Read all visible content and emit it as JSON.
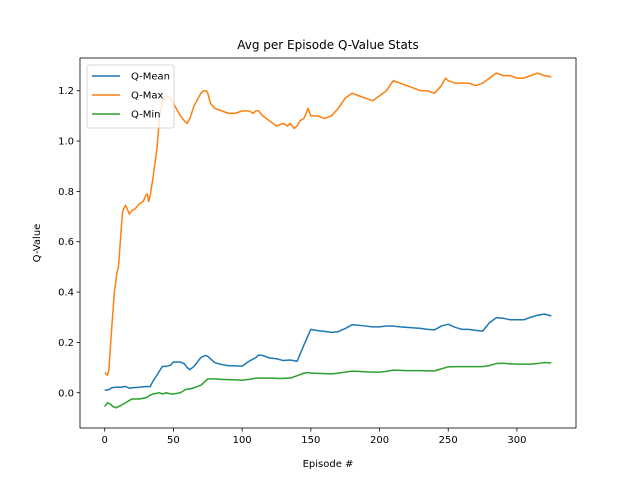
{
  "chart_data": {
    "type": "line",
    "title": "Avg per Episode Q-Value Stats",
    "xlabel": "Episode #",
    "ylabel": "Q-Value",
    "xlim": [
      -18,
      343
    ],
    "ylim": [
      -0.14,
      1.33
    ],
    "xticks": [
      0,
      50,
      100,
      150,
      200,
      250,
      300
    ],
    "yticks": [
      0.0,
      0.2,
      0.4,
      0.6,
      0.8,
      1.0,
      1.2
    ],
    "ytick_labels": [
      "0.0",
      "0.2",
      "0.4",
      "0.6",
      "0.8",
      "1.0",
      "1.2"
    ],
    "grid": false,
    "legend_position": "top-left",
    "series": [
      {
        "name": "Q-Mean",
        "color": "#1f77b4",
        "x": [
          0,
          3,
          5,
          8,
          12,
          15,
          18,
          20,
          25,
          30,
          33,
          35,
          38,
          42,
          45,
          48,
          50,
          55,
          58,
          60,
          62,
          65,
          70,
          73,
          75,
          78,
          80,
          85,
          90,
          100,
          105,
          110,
          112,
          115,
          120,
          125,
          130,
          135,
          140,
          145,
          150,
          155,
          160,
          165,
          170,
          175,
          180,
          185,
          190,
          195,
          200,
          205,
          210,
          215,
          220,
          225,
          230,
          235,
          240,
          245,
          250,
          255,
          260,
          265,
          270,
          275,
          280,
          285,
          290,
          295,
          300,
          305,
          310,
          315,
          320,
          325
        ],
        "y": [
          0.01,
          0.012,
          0.02,
          0.022,
          0.022,
          0.025,
          0.018,
          0.02,
          0.022,
          0.025,
          0.024,
          0.045,
          0.07,
          0.105,
          0.105,
          0.11,
          0.122,
          0.122,
          0.115,
          0.1,
          0.092,
          0.105,
          0.14,
          0.148,
          0.145,
          0.13,
          0.12,
          0.112,
          0.108,
          0.106,
          0.125,
          0.14,
          0.15,
          0.148,
          0.138,
          0.135,
          0.128,
          0.13,
          0.125,
          0.19,
          0.252,
          0.247,
          0.244,
          0.24,
          0.243,
          0.255,
          0.27,
          0.268,
          0.265,
          0.262,
          0.262,
          0.265,
          0.265,
          0.262,
          0.26,
          0.258,
          0.256,
          0.252,
          0.25,
          0.265,
          0.272,
          0.26,
          0.252,
          0.252,
          0.248,
          0.245,
          0.278,
          0.298,
          0.296,
          0.29,
          0.29,
          0.29,
          0.3,
          0.308,
          0.313,
          0.305
        ]
      },
      {
        "name": "Q-Max",
        "color": "#ff7f0e",
        "x": [
          0,
          2,
          3,
          5,
          7,
          9,
          10,
          12,
          13,
          15,
          16,
          18,
          20,
          22,
          25,
          28,
          30,
          31,
          32,
          33,
          35,
          38,
          40,
          42,
          45,
          48,
          50,
          52,
          55,
          58,
          60,
          62,
          65,
          68,
          70,
          72,
          74,
          75,
          77,
          80,
          85,
          90,
          95,
          100,
          105,
          108,
          110,
          112,
          115,
          120,
          125,
          130,
          133,
          135,
          138,
          140,
          142,
          145,
          148,
          150,
          155,
          160,
          165,
          170,
          175,
          180,
          185,
          190,
          195,
          200,
          205,
          210,
          215,
          220,
          225,
          230,
          235,
          240,
          245,
          248,
          250,
          255,
          260,
          265,
          270,
          275,
          280,
          285,
          290,
          295,
          300,
          305,
          310,
          315,
          320,
          325
        ],
        "y": [
          0.08,
          0.07,
          0.09,
          0.25,
          0.4,
          0.48,
          0.5,
          0.65,
          0.72,
          0.745,
          0.735,
          0.71,
          0.725,
          0.73,
          0.75,
          0.76,
          0.785,
          0.79,
          0.76,
          0.78,
          0.85,
          0.97,
          1.1,
          1.16,
          1.18,
          1.17,
          1.15,
          1.13,
          1.1,
          1.08,
          1.07,
          1.09,
          1.14,
          1.17,
          1.19,
          1.2,
          1.2,
          1.19,
          1.15,
          1.13,
          1.12,
          1.11,
          1.11,
          1.12,
          1.12,
          1.11,
          1.12,
          1.12,
          1.1,
          1.08,
          1.06,
          1.07,
          1.06,
          1.07,
          1.05,
          1.06,
          1.08,
          1.09,
          1.13,
          1.1,
          1.1,
          1.09,
          1.1,
          1.13,
          1.17,
          1.19,
          1.18,
          1.17,
          1.16,
          1.18,
          1.2,
          1.24,
          1.23,
          1.22,
          1.21,
          1.2,
          1.2,
          1.19,
          1.22,
          1.25,
          1.24,
          1.23,
          1.23,
          1.23,
          1.22,
          1.23,
          1.25,
          1.27,
          1.26,
          1.26,
          1.25,
          1.25,
          1.26,
          1.27,
          1.26,
          1.255
        ]
      },
      {
        "name": "Q-Min",
        "color": "#2ca02c",
        "x": [
          0,
          2,
          4,
          6,
          8,
          10,
          12,
          15,
          18,
          20,
          25,
          30,
          33,
          35,
          40,
          42,
          45,
          48,
          50,
          55,
          58,
          60,
          62,
          65,
          70,
          75,
          80,
          85,
          90,
          100,
          105,
          110,
          115,
          120,
          125,
          130,
          135,
          140,
          145,
          148,
          150,
          155,
          160,
          165,
          170,
          175,
          180,
          185,
          190,
          195,
          200,
          205,
          210,
          215,
          220,
          225,
          230,
          235,
          240,
          245,
          250,
          255,
          260,
          265,
          270,
          275,
          280,
          285,
          290,
          295,
          300,
          305,
          310,
          315,
          320,
          325
        ],
        "y": [
          -0.055,
          -0.04,
          -0.045,
          -0.055,
          -0.06,
          -0.055,
          -0.05,
          -0.04,
          -0.03,
          -0.025,
          -0.025,
          -0.02,
          -0.01,
          -0.005,
          0.0,
          -0.005,
          0.0,
          -0.005,
          -0.005,
          0.0,
          0.01,
          0.015,
          0.015,
          0.02,
          0.03,
          0.055,
          0.055,
          0.053,
          0.052,
          0.05,
          0.053,
          0.058,
          0.058,
          0.058,
          0.057,
          0.057,
          0.058,
          0.068,
          0.078,
          0.08,
          0.078,
          0.077,
          0.076,
          0.075,
          0.078,
          0.082,
          0.086,
          0.085,
          0.083,
          0.082,
          0.082,
          0.085,
          0.09,
          0.089,
          0.088,
          0.088,
          0.088,
          0.087,
          0.087,
          0.095,
          0.103,
          0.104,
          0.104,
          0.104,
          0.104,
          0.104,
          0.108,
          0.116,
          0.117,
          0.115,
          0.114,
          0.114,
          0.114,
          0.116,
          0.12,
          0.118
        ]
      }
    ]
  }
}
